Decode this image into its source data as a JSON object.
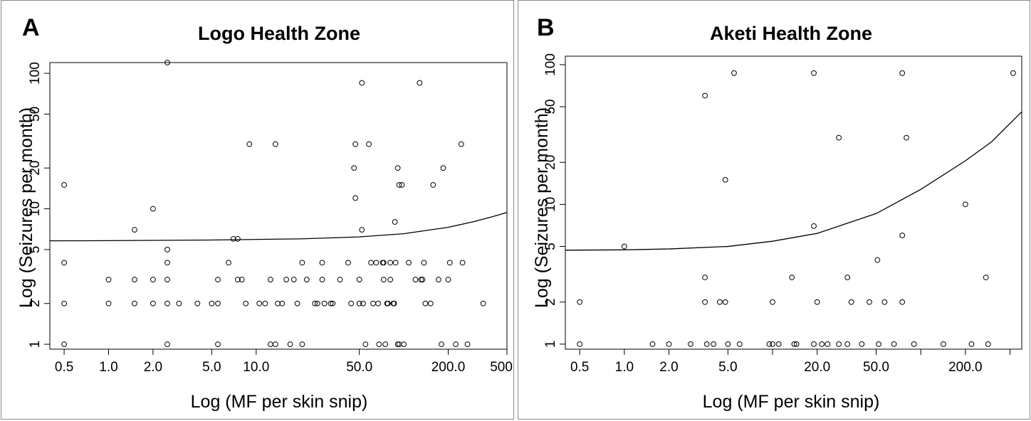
{
  "chart_data": [
    {
      "type": "scatter",
      "panel_label": "A",
      "title": "Logo Health Zone",
      "xlabel": "Log (MF per skin snip)",
      "ylabel": "Log (Seizures per month)",
      "x_scale": "log",
      "y_scale": "log",
      "xlim": [
        0.4,
        500
      ],
      "ylim": [
        0.92,
        120
      ],
      "x_ticks": [
        0.5,
        1,
        2,
        5,
        10,
        50,
        200,
        500
      ],
      "x_tick_labels": [
        "0.5",
        "1.0",
        "2.0",
        "5.0",
        "10.0",
        "50.0",
        "200.0",
        "500.0"
      ],
      "y_ticks": [
        1,
        2,
        5,
        10,
        20,
        50,
        100
      ],
      "y_tick_labels": [
        "1",
        "2",
        "5",
        "10",
        "20",
        "50",
        "100"
      ],
      "grid": false,
      "points": [
        [
          0.5,
          15
        ],
        [
          0.5,
          4
        ],
        [
          0.5,
          2
        ],
        [
          0.5,
          1
        ],
        [
          1,
          3
        ],
        [
          1,
          2
        ],
        [
          1.5,
          7
        ],
        [
          1.5,
          3
        ],
        [
          1.5,
          2
        ],
        [
          2,
          10
        ],
        [
          2,
          3
        ],
        [
          2,
          2
        ],
        [
          2.5,
          120
        ],
        [
          2.5,
          5
        ],
        [
          2.5,
          4
        ],
        [
          2.5,
          3
        ],
        [
          2.5,
          2
        ],
        [
          2.5,
          1
        ],
        [
          3,
          2
        ],
        [
          4,
          2
        ],
        [
          5,
          2
        ],
        [
          5.5,
          3
        ],
        [
          5.5,
          2
        ],
        [
          5.5,
          1
        ],
        [
          6.5,
          4
        ],
        [
          7,
          6
        ],
        [
          7.5,
          6
        ],
        [
          7.5,
          3
        ],
        [
          8,
          3
        ],
        [
          8.5,
          2
        ],
        [
          9,
          30
        ],
        [
          10.5,
          2
        ],
        [
          11.5,
          2
        ],
        [
          12.5,
          3
        ],
        [
          12.5,
          1
        ],
        [
          13.5,
          30
        ],
        [
          13.5,
          1
        ],
        [
          14,
          2
        ],
        [
          15,
          2
        ],
        [
          16,
          3
        ],
        [
          17,
          1
        ],
        [
          18,
          3
        ],
        [
          19,
          2
        ],
        [
          20.5,
          4
        ],
        [
          20.5,
          1
        ],
        [
          22,
          3
        ],
        [
          25,
          2
        ],
        [
          26,
          2
        ],
        [
          28,
          4
        ],
        [
          28,
          3
        ],
        [
          29,
          2
        ],
        [
          32,
          2
        ],
        [
          33,
          2
        ],
        [
          37,
          3
        ],
        [
          42,
          4
        ],
        [
          44,
          2
        ],
        [
          46,
          20
        ],
        [
          47,
          30
        ],
        [
          47,
          12
        ],
        [
          50,
          3
        ],
        [
          50,
          2
        ],
        [
          52,
          85
        ],
        [
          52,
          7
        ],
        [
          53,
          2
        ],
        [
          55,
          1
        ],
        [
          58,
          30
        ],
        [
          60,
          4
        ],
        [
          62,
          2
        ],
        [
          65,
          4
        ],
        [
          67,
          2
        ],
        [
          68,
          1
        ],
        [
          72,
          4
        ],
        [
          73,
          4
        ],
        [
          73,
          3
        ],
        [
          75,
          1
        ],
        [
          77,
          2
        ],
        [
          78,
          2
        ],
        [
          81,
          4
        ],
        [
          81,
          3
        ],
        [
          85,
          2
        ],
        [
          86,
          2
        ],
        [
          87,
          8
        ],
        [
          88,
          4
        ],
        [
          91,
          20
        ],
        [
          91,
          1
        ],
        [
          93,
          15
        ],
        [
          93,
          1
        ],
        [
          97,
          15
        ],
        [
          100,
          1
        ],
        [
          108,
          4
        ],
        [
          120,
          3
        ],
        [
          128,
          85
        ],
        [
          131,
          3
        ],
        [
          134,
          3
        ],
        [
          137,
          4
        ],
        [
          140,
          2
        ],
        [
          152,
          2
        ],
        [
          158,
          15
        ],
        [
          172,
          3
        ],
        [
          180,
          1
        ],
        [
          185,
          20
        ],
        [
          200,
          3
        ],
        [
          205,
          4
        ],
        [
          225,
          1
        ],
        [
          245,
          30
        ],
        [
          250,
          4
        ],
        [
          270,
          1
        ],
        [
          345,
          2
        ]
      ],
      "curve": [
        [
          0.4,
          5.8
        ],
        [
          1,
          5.82
        ],
        [
          5,
          5.88
        ],
        [
          20,
          6.0
        ],
        [
          50,
          6.2
        ],
        [
          100,
          6.55
        ],
        [
          200,
          7.3
        ],
        [
          300,
          8.05
        ],
        [
          400,
          8.75
        ],
        [
          500,
          9.4
        ]
      ]
    },
    {
      "type": "scatter",
      "panel_label": "B",
      "title": "Aketi Health Zone",
      "xlabel": "Log (MF per skin snip)",
      "ylabel": "Log (Seizures per month)",
      "x_scale": "log",
      "y_scale": "log",
      "xlim": [
        0.4,
        480
      ],
      "ylim": [
        0.92,
        115
      ],
      "x_ticks": [
        0.5,
        1,
        2,
        5,
        20,
        50,
        200
      ],
      "x_tick_labels": [
        "0.5",
        "1.0",
        "2.0",
        "5.0",
        "20.0",
        "50.0",
        "200.0"
      ],
      "x_minor_ticks": [
        10,
        100,
        400
      ],
      "y_ticks": [
        1,
        2,
        5,
        10,
        20,
        50,
        100
      ],
      "y_tick_labels": [
        "1",
        "2",
        "5",
        "10",
        "20",
        "50",
        "100"
      ],
      "grid": false,
      "points": [
        [
          0.5,
          2
        ],
        [
          0.5,
          1
        ],
        [
          1,
          5
        ],
        [
          1.55,
          1
        ],
        [
          2,
          1
        ],
        [
          2.8,
          1
        ],
        [
          3.5,
          60
        ],
        [
          3.5,
          3
        ],
        [
          3.5,
          2
        ],
        [
          3.6,
          1
        ],
        [
          4,
          1
        ],
        [
          4.4,
          2
        ],
        [
          4.8,
          15
        ],
        [
          4.8,
          2
        ],
        [
          5,
          1
        ],
        [
          5.5,
          87
        ],
        [
          6,
          1
        ],
        [
          9.5,
          1
        ],
        [
          10,
          2
        ],
        [
          10,
          1
        ],
        [
          11,
          1
        ],
        [
          13.5,
          3
        ],
        [
          14,
          1
        ],
        [
          14.5,
          1
        ],
        [
          19,
          87
        ],
        [
          19,
          7
        ],
        [
          19,
          1
        ],
        [
          20,
          2
        ],
        [
          21.5,
          1
        ],
        [
          23.5,
          1
        ],
        [
          28,
          30
        ],
        [
          28,
          1
        ],
        [
          32,
          3
        ],
        [
          32,
          1
        ],
        [
          34,
          2
        ],
        [
          40,
          1
        ],
        [
          45,
          2
        ],
        [
          51,
          4
        ],
        [
          52,
          1
        ],
        [
          57,
          2
        ],
        [
          66,
          1
        ],
        [
          75,
          87
        ],
        [
          75,
          6
        ],
        [
          75,
          2
        ],
        [
          80,
          30
        ],
        [
          90,
          1
        ],
        [
          142,
          1
        ],
        [
          200,
          10
        ],
        [
          220,
          1
        ],
        [
          275,
          3
        ],
        [
          285,
          1
        ],
        [
          420,
          87
        ]
      ],
      "curve": [
        [
          0.4,
          4.7
        ],
        [
          1,
          4.73
        ],
        [
          2,
          4.8
        ],
        [
          5,
          5.0
        ],
        [
          10,
          5.45
        ],
        [
          20,
          6.2
        ],
        [
          50,
          8.6
        ],
        [
          100,
          12.8
        ],
        [
          200,
          20.5
        ],
        [
          300,
          28.0
        ],
        [
          480,
          46.0
        ]
      ]
    }
  ]
}
